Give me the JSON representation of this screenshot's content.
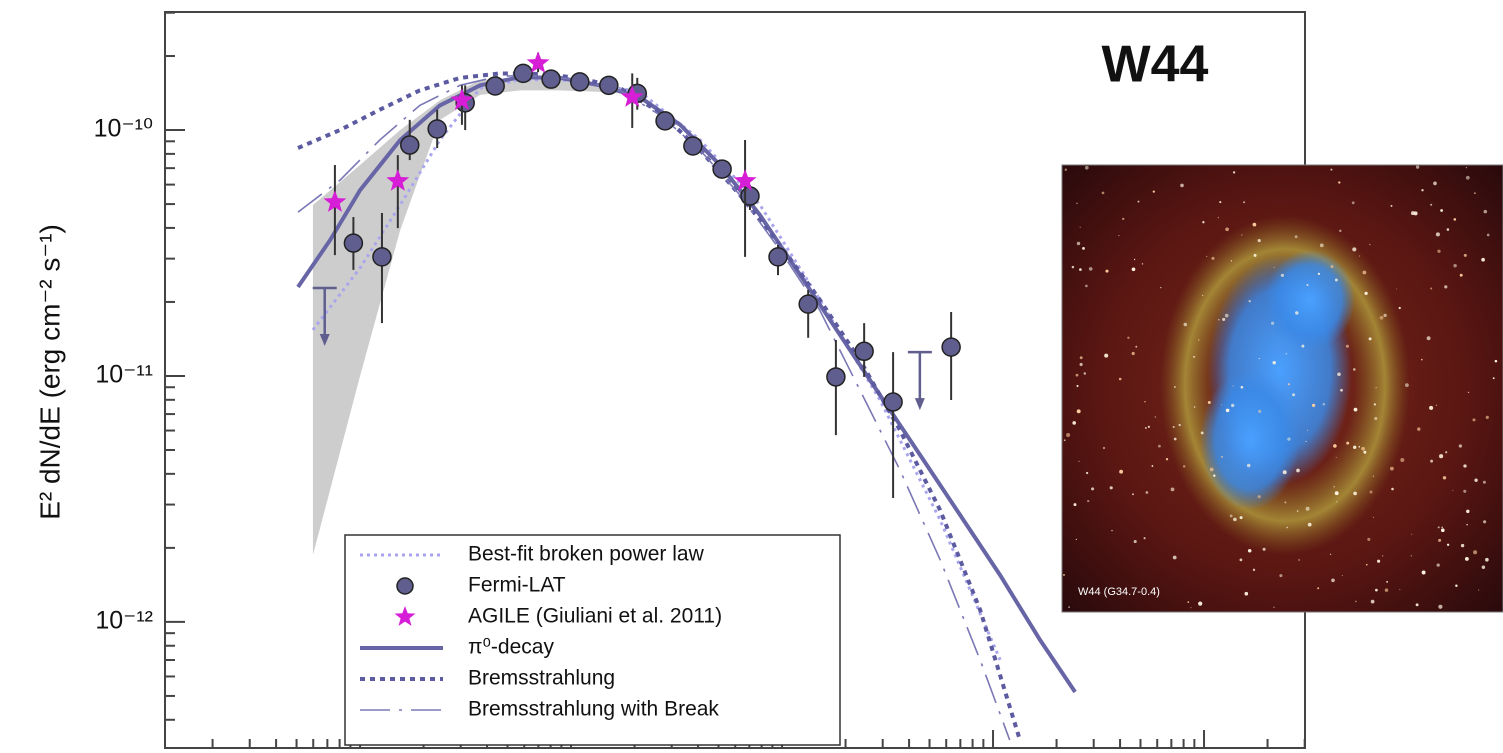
{
  "chart_data": {
    "type": "scatter",
    "xscale": "log",
    "yscale": "log",
    "ylabel": "E² dN/dE (erg cm⁻² s⁻¹)",
    "annotation": "W44",
    "inset_caption": "W44 (G34.7-0.4)",
    "legend": "lower left",
    "xlim": [
      11900000.0,
      3010000000000.0
    ],
    "xticks": [
      100000000.0,
      1000000000.0,
      10000000000.0,
      100000000000.0,
      1000000000000.0
    ],
    "ylim": [
      3.31e-13,
      3.02e-10
    ],
    "yticks": [
      {
        "value": 1e-10,
        "label": "10⁻¹⁰"
      },
      {
        "value": 1e-11,
        "label": "10⁻¹¹"
      },
      {
        "value": 1e-12,
        "label": "10⁻¹²"
      }
    ],
    "band": {
      "color": "#cdcdcd",
      "x": [
        59800000.0,
        100000000.0,
        155000000.0,
        239000000.0,
        371000000.0,
        573000000.0,
        887000000.0,
        1370000000.0,
        2120000000.0
      ],
      "low": [
        1.87e-12,
        1e-11,
        3.92e-11,
        1.1e-10,
        1.39e-10,
        1.45e-10,
        1.45e-10,
        1.43e-10,
        1.39e-10
      ],
      "high": [
        4.96e-11,
        7.21e-11,
        1e-10,
        1.32e-10,
        1.6e-10,
        1.63e-10,
        1.6e-10,
        1.52e-10,
        1.39e-10
      ]
    },
    "series": [
      {
        "name": "Best-fit broken power law",
        "mode": "line",
        "line_style": "dotted-light",
        "color": "#aaa6ee",
        "x": [
          59800000.0,
          100000000.0,
          155000000.0,
          239000000.0,
          371000000.0,
          573000000.0,
          887000000.0,
          1370000000.0,
          2120000000.0,
          4090000000.0,
          7860000000.0,
          15100000000.0,
          29100000000.0,
          56100000000.0,
          108000000000.0
        ],
        "values": [
          1.54e-11,
          2.75e-11,
          4.96e-11,
          9.11e-11,
          1.48e-10,
          1.6e-10,
          1.6e-10,
          1.52e-10,
          1.43e-10,
          9.11e-11,
          4.96e-11,
          2.04e-11,
          7.99e-12,
          2.6e-12,
          7.01e-13
        ]
      },
      {
        "name": "Fermi-LAT",
        "mode": "markers",
        "marker": "circle",
        "color": "#5f5e8e",
        "x": [
          93000000.0,
          127000000.0,
          172000000.0,
          232000000.0,
          315000000.0,
          437000000.0,
          593000000.0,
          804000000.0,
          1100000000.0,
          1510000000.0,
          2060000000.0,
          2790000000.0,
          3780000000.0,
          5200000000.0,
          7050000000.0,
          9570000000.0,
          13300000000.0,
          18000000000.0,
          24500000000.0,
          33600000000.0,
          63300000000.0
        ],
        "values": [
          3.47e-11,
          3.05e-11,
          8.69e-11,
          1.01e-10,
          1.29e-10,
          1.51e-10,
          1.7e-10,
          1.61e-10,
          1.57e-10,
          1.52e-10,
          1.41e-10,
          1.09e-10,
          8.61e-11,
          6.94e-11,
          5.39e-11,
          3.05e-11,
          1.96e-11,
          9.91e-12,
          1.26e-11,
          7.84e-12,
          1.31e-11
        ],
        "ylow": [
          2.7e-11,
          1.64e-11,
          7.55e-11,
          8.45e-11,
          1e-10,
          null,
          null,
          null,
          null,
          null,
          1.21e-10,
          null,
          null,
          null,
          4.73e-11,
          2.57e-11,
          1.43e-11,
          5.75e-12,
          9.91e-12,
          3.19e-12,
          7.99e-12
        ],
        "yhigh": [
          4.43e-11,
          4.6e-11,
          1.1e-10,
          1.21e-10,
          1.52e-10,
          null,
          null,
          null,
          null,
          null,
          1.63e-10,
          null,
          null,
          null,
          5.98e-11,
          3.41e-11,
          2.24e-11,
          1.4e-11,
          1.64e-11,
          1.25e-11,
          1.82e-11
        ],
        "upper_limit_x": [
          68000000.0,
          45000000000.0
        ],
        "upper_limit_values": [
          2.28e-11,
          1.25e-11
        ]
      },
      {
        "name": "AGILE (Giuliani et al. 2011)",
        "mode": "markers",
        "marker": "star",
        "color": "#d61ed6",
        "x": [
          76000000.0,
          151000000.0,
          304000000.0,
          698000000.0,
          1950000000.0,
          6680000000.0
        ],
        "values": [
          5.09e-11,
          6.2e-11,
          1.32e-10,
          1.87e-10,
          1.36e-10,
          6.2e-11
        ],
        "ylow": [
          3.1e-11,
          3.99e-11,
          1.05e-10,
          1.72e-10,
          1.02e-10,
          3.05e-11
        ],
        "yhigh": [
          7.21e-11,
          7.91e-11,
          1.52e-10,
          2.06e-10,
          1.7e-10,
          9.11e-11
        ]
      },
      {
        "name": "π⁰-decay",
        "mode": "line",
        "line_style": "solid",
        "color": "#6765a5",
        "x": [
          50800000.0,
          72100000.0,
          100000000.0,
          155000000.0,
          239000000.0,
          371000000.0,
          573000000.0,
          887000000.0,
          1370000000.0,
          2120000000.0,
          3290000000.0,
          5080000000.0,
          7860000000.0,
          12200000000.0,
          18800000000.0,
          29100000000.0,
          45100000000.0,
          69800000000.0,
          108000000000.0,
          167000000000.0,
          245000000000.0
        ],
        "values": [
          2.3e-11,
          3.57e-11,
          5.7e-11,
          9.11e-11,
          1.26e-10,
          1.52e-10,
          1.64e-10,
          1.63e-10,
          1.52e-10,
          1.36e-10,
          1.05e-10,
          7.21e-11,
          4.51e-11,
          2.57e-11,
          1.47e-11,
          8.37e-12,
          4.77e-12,
          2.72e-12,
          1.55e-12,
          8.45e-13,
          5.19e-13
        ]
      },
      {
        "name": "Bremsstrahlung",
        "mode": "line",
        "line_style": "dotted",
        "color": "#5c5aa0",
        "x": [
          50800000.0,
          80400000.0,
          124000000.0,
          192000000.0,
          298000000.0,
          461000000.0,
          713000000.0,
          1100000000.0,
          1710000000.0,
          2640000000.0,
          4090000000.0,
          6320000000.0,
          9790000000.0,
          15100000000.0,
          23400000000.0,
          36200000000.0,
          56100000000.0,
          86800000000.0,
          134000000000.0
        ],
        "values": [
          8.45e-11,
          1e-10,
          1.21e-10,
          1.45e-10,
          1.63e-10,
          1.7e-10,
          1.69e-10,
          1.63e-10,
          1.48e-10,
          1.18e-10,
          8.29e-11,
          5.44e-11,
          3.41e-11,
          2.04e-11,
          1.16e-11,
          6.03e-12,
          2.85e-12,
          1.12e-12,
          3.31e-13
        ]
      },
      {
        "name": "Bremsstrahlung with Break",
        "mode": "line",
        "line_style": "dash-dot",
        "color": "#7b78b5",
        "x": [
          50800000.0,
          80400000.0,
          124000000.0,
          192000000.0,
          298000000.0,
          461000000.0,
          713000000.0,
          1100000000.0,
          1710000000.0,
          2640000000.0,
          4090000000.0,
          6320000000.0,
          9790000000.0,
          15100000000.0,
          23400000000.0,
          36200000000.0,
          56100000000.0,
          86800000000.0,
          120000000000.0
        ],
        "values": [
          4.64e-11,
          6.26e-11,
          9.11e-11,
          1.26e-10,
          1.52e-10,
          1.66e-10,
          1.66e-10,
          1.6e-10,
          1.45e-10,
          1.15e-10,
          8.29e-11,
          5.44e-11,
          3.25e-11,
          1.85e-11,
          8.77e-12,
          4.15e-12,
          1.79e-12,
          7.01e-13,
          3.31e-13
        ]
      }
    ]
  }
}
